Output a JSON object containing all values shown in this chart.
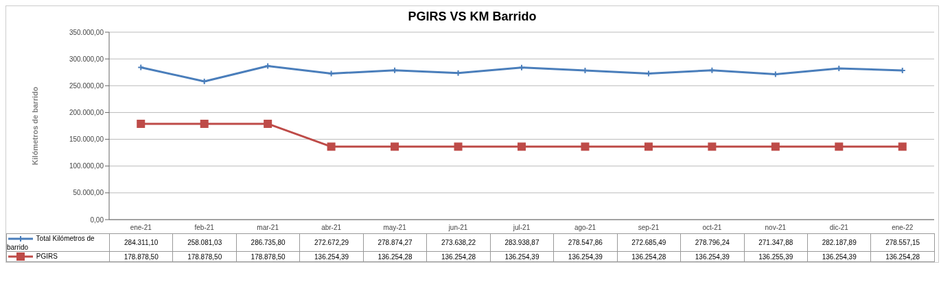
{
  "chart_data": {
    "type": "line",
    "title": "PGIRS VS KM Barrido",
    "ylabel": "Kilómetros de barrido",
    "categories": [
      "ene-21",
      "feb-21",
      "mar-21",
      "abr-21",
      "may-21",
      "jun-21",
      "jul-21",
      "ago-21",
      "sep-21",
      "oct-21",
      "nov-21",
      "dic-21",
      "ene-22"
    ],
    "series": [
      {
        "name": "Total Kilómetros de barrido",
        "color": "#4a7ebb",
        "marker": "cross",
        "values": [
          284311.1,
          258081.03,
          286735.8,
          272672.29,
          278874.27,
          273638.22,
          283938.87,
          278547.86,
          272685.49,
          278796.24,
          271347.88,
          282187.89,
          278557.15
        ],
        "value_labels": [
          "284.311,10",
          "258.081,03",
          "286.735,80",
          "272.672,29",
          "278.874,27",
          "273.638,22",
          "283.938,87",
          "278.547,86",
          "272.685,49",
          "278.796,24",
          "271.347,88",
          "282.187,89",
          "278.557,15"
        ]
      },
      {
        "name": "PGIRS",
        "color": "#be4b48",
        "marker": "square",
        "values": [
          178878.5,
          178878.5,
          178878.5,
          136254.39,
          136254.28,
          136254.28,
          136254.39,
          136254.39,
          136254.28,
          136254.39,
          136255.39,
          136254.39,
          136254.28
        ],
        "value_labels": [
          "178.878,50",
          "178.878,50",
          "178.878,50",
          "136.254,39",
          "136.254,28",
          "136.254,28",
          "136.254,39",
          "136.254,39",
          "136.254,28",
          "136.254,39",
          "136.255,39",
          "136.254,39",
          "136.254,28"
        ]
      }
    ],
    "ylim": [
      0,
      350000
    ],
    "yticks": [
      {
        "value": 0,
        "label": "0,00"
      },
      {
        "value": 50000,
        "label": "50.000,00"
      },
      {
        "value": 100000,
        "label": "100.000,00"
      },
      {
        "value": 150000,
        "label": "150.000,00"
      },
      {
        "value": 200000,
        "label": "200.000,00"
      },
      {
        "value": 250000,
        "label": "250.000,00"
      },
      {
        "value": 300000,
        "label": "300.000,00"
      },
      {
        "value": 350000,
        "label": "350.000,00"
      }
    ],
    "grid": "y",
    "legend": "bottom",
    "line_style": "solid"
  }
}
